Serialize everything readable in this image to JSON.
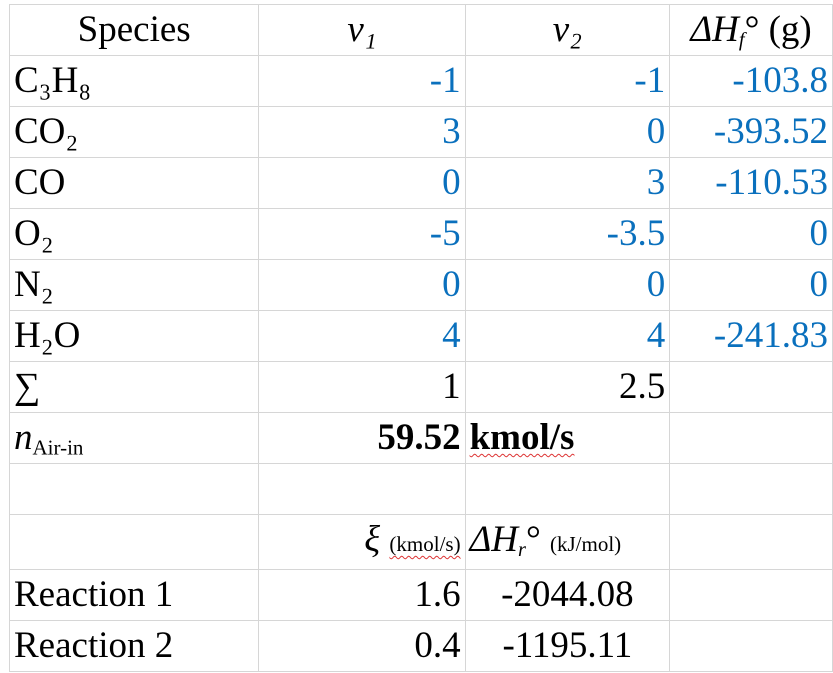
{
  "header": {
    "species": "Species",
    "nu1": "ν₁",
    "nu2": "ν₂",
    "dhf": {
      "base": "ΔH",
      "sub": "f",
      "rest": "° (g)"
    }
  },
  "rows": [
    {
      "name": "C₃H₈",
      "nu1": -1,
      "nu2": -1,
      "dhf": -103.8
    },
    {
      "name": "CO₂",
      "nu1": 3,
      "nu2": 0,
      "dhf": -393.52
    },
    {
      "name": "CO",
      "nu1": 0,
      "nu2": 3,
      "dhf": -110.53
    },
    {
      "name": "O₂",
      "nu1": -5,
      "nu2": -3.5,
      "dhf": 0
    },
    {
      "name": "N₂",
      "nu1": 0,
      "nu2": 0,
      "dhf": 0
    },
    {
      "name": "H₂O",
      "nu1": 4,
      "nu2": 4,
      "dhf": -241.83
    }
  ],
  "sum": {
    "label": "∑",
    "nu1": 1,
    "nu2": 2.5
  },
  "air": {
    "symbol": "n",
    "sub": "Air-in",
    "value": 59.52,
    "unit": "kmol/s"
  },
  "reaction_header": {
    "xi": "ξ",
    "xi_unit": "(kmol/s)",
    "dhr": "ΔH",
    "dhr_sub": "r",
    "dhr_rest": "°",
    "dhr_unit": "(kJ/mol)"
  },
  "reactions": [
    {
      "name": "Reaction 1",
      "xi": 1.6,
      "dhr": -2044.08
    },
    {
      "name": "Reaction 2",
      "xi": 0.4,
      "dhr": -1195.11
    }
  ]
}
